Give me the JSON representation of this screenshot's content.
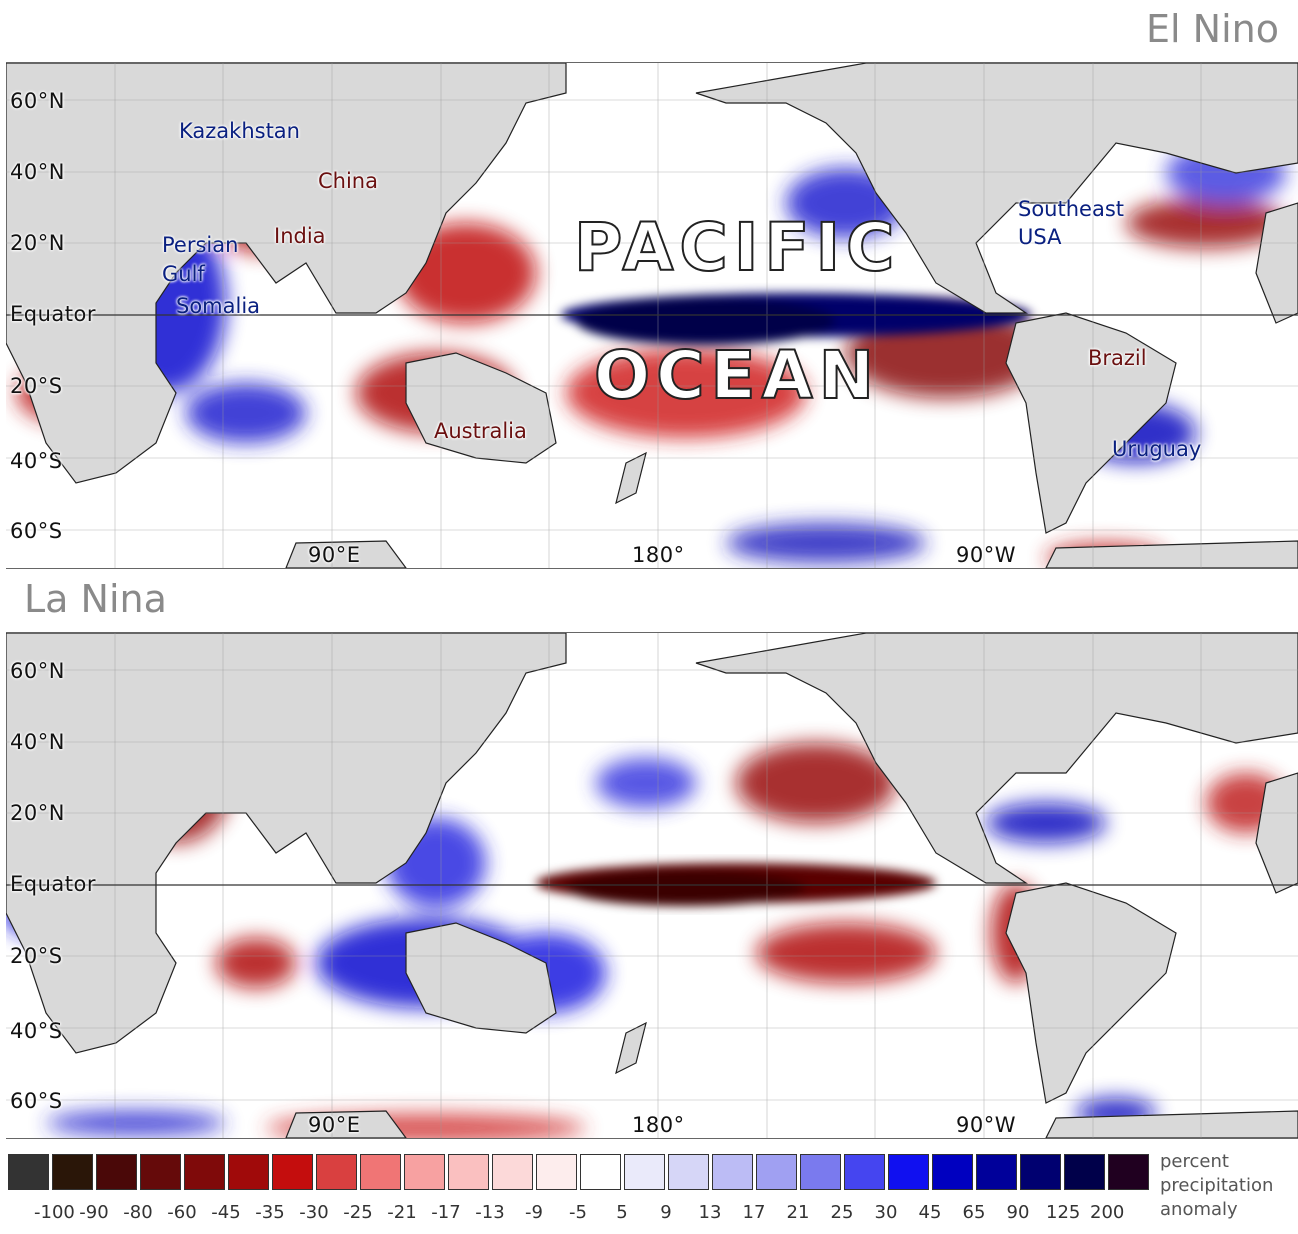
{
  "panels": [
    {
      "title": "El Nino",
      "lat_labels": [
        "60°N",
        "40°N",
        "20°N",
        "Equator",
        "20°S",
        "40°S",
        "60°S"
      ],
      "lon_labels": [
        "90°E",
        "180°",
        "90°W"
      ],
      "regions": [
        {
          "name": "Kazakhstan",
          "sign": "wet"
        },
        {
          "name": "China",
          "sign": "dry"
        },
        {
          "name": "India",
          "sign": "dry"
        },
        {
          "name": "Persian",
          "sign": "wet"
        },
        {
          "name": "Gulf",
          "sign": "wet"
        },
        {
          "name": "Somalia",
          "sign": "wet"
        },
        {
          "name": "Australia",
          "sign": "dry"
        },
        {
          "name": "Southeast",
          "sign": "wet"
        },
        {
          "name": "USA",
          "sign": "wet"
        },
        {
          "name": "Brazil",
          "sign": "dry"
        },
        {
          "name": "Uruguay",
          "sign": "wet"
        }
      ],
      "ocean_label": [
        "PACIFIC",
        "OCEAN"
      ]
    },
    {
      "title": "La Nina",
      "lat_labels": [
        "60°N",
        "40°N",
        "20°N",
        "Equator",
        "20°S",
        "40°S",
        "60°S"
      ],
      "lon_labels": [
        "90°E",
        "180°",
        "90°W"
      ]
    }
  ],
  "legend": {
    "title_lines": [
      "percent",
      "precipitation",
      "anomaly"
    ],
    "colors": [
      "#333333",
      "#2a1608",
      "#4a0808",
      "#650a0a",
      "#7f0a0a",
      "#a00a0a",
      "#c40d0d",
      "#d94040",
      "#f07575",
      "#f7a1a1",
      "#fac0c0",
      "#fcd9d9",
      "#fdeded",
      "#ffffff",
      "#eaeafa",
      "#d6d6f7",
      "#bcbcf5",
      "#a0a0f2",
      "#7a7aee",
      "#4545f0",
      "#1010f0",
      "#0000c0",
      "#00009a",
      "#000070",
      "#00004a",
      "#200020"
    ],
    "ticks": [
      "-100",
      "-90",
      "-80",
      "-60",
      "-45",
      "-35",
      "-30",
      "-25",
      "-21",
      "-17",
      "-13",
      "-9",
      "-5",
      "5",
      "9",
      "13",
      "17",
      "21",
      "25",
      "30",
      "45",
      "65",
      "90",
      "125",
      "200"
    ]
  },
  "colors": {
    "land": "#d9d9d9",
    "coast": "#222222",
    "wet_label": "#0a2080",
    "dry_label": "#6a1010",
    "title": "#8a8a8a"
  }
}
